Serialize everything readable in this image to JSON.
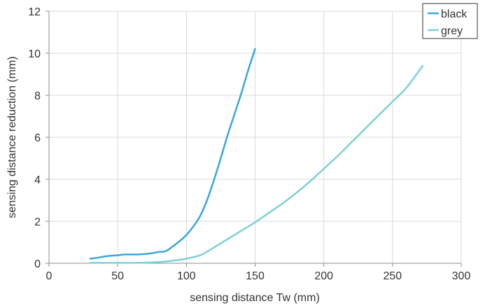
{
  "chart_data": {
    "type": "line",
    "title": "",
    "xlabel": "sensing distance Tw (mm)",
    "ylabel": "sensing distance reduction (mm)",
    "xlim": [
      0,
      300
    ],
    "ylim": [
      0,
      12
    ],
    "xticks": [
      0,
      50,
      100,
      150,
      200,
      250,
      300
    ],
    "yticks": [
      0,
      2,
      4,
      6,
      8,
      10,
      12
    ],
    "grid": "on",
    "legend": "top-right",
    "series": [
      {
        "name": "black",
        "color": "#3aa6dd",
        "x": [
          30,
          35,
          40,
          45,
          50,
          55,
          60,
          65,
          70,
          75,
          80,
          85,
          90,
          95,
          100,
          105,
          110,
          115,
          120,
          125,
          130,
          135,
          140,
          145,
          150
        ],
        "y": [
          0.22,
          0.26,
          0.32,
          0.36,
          0.38,
          0.42,
          0.42,
          0.42,
          0.44,
          0.48,
          0.54,
          0.58,
          0.8,
          1.05,
          1.35,
          1.75,
          2.25,
          3.0,
          3.95,
          5.0,
          6.1,
          7.1,
          8.1,
          9.2,
          10.2
        ]
      },
      {
        "name": "grey",
        "color": "#7fd1d6",
        "x": [
          30,
          50,
          70,
          80,
          90,
          100,
          110,
          115,
          120,
          130,
          140,
          150,
          160,
          170,
          180,
          190,
          200,
          210,
          220,
          230,
          240,
          250,
          260,
          272
        ],
        "y": [
          0.02,
          0.02,
          0.03,
          0.06,
          0.12,
          0.22,
          0.38,
          0.55,
          0.75,
          1.15,
          1.55,
          1.95,
          2.4,
          2.85,
          3.35,
          3.9,
          4.5,
          5.1,
          5.75,
          6.4,
          7.05,
          7.7,
          8.35,
          9.4
        ]
      }
    ]
  }
}
